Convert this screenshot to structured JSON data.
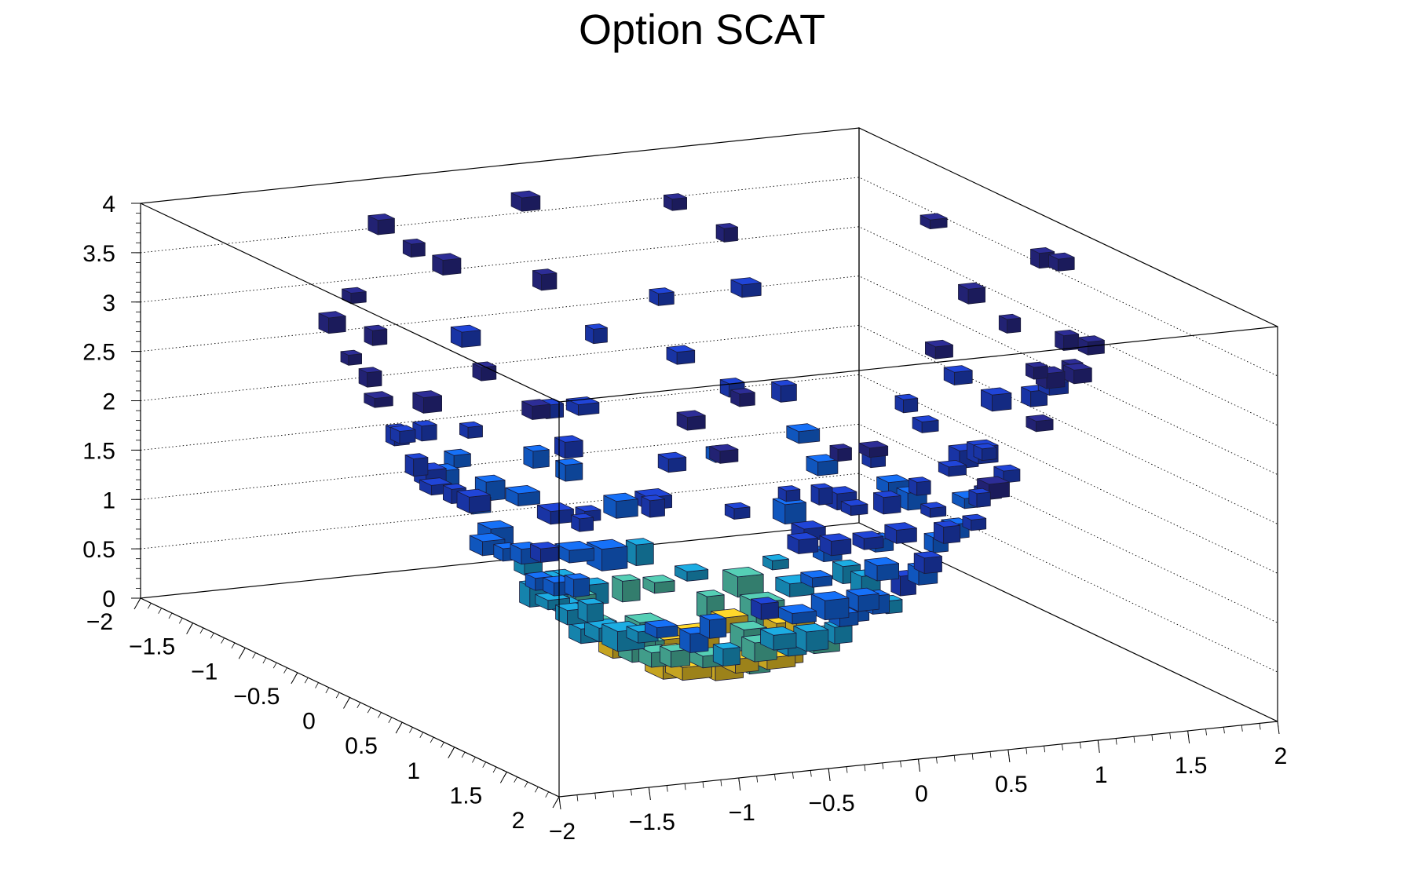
{
  "chart_data": {
    "type": "lego3d",
    "title": "Option SCAT",
    "xlabel": "",
    "ylabel": "",
    "zlabel": "",
    "xlim": [
      -2,
      2
    ],
    "ylim": [
      -2,
      2
    ],
    "zlim": [
      0,
      4
    ],
    "x_ticks": [
      "−2",
      "−1.5",
      "−1",
      "−0.5",
      "0",
      "0.5",
      "1",
      "1.5",
      "2"
    ],
    "y_ticks": [
      "−2",
      "−1.5",
      "−1",
      "−0.5",
      "0",
      "0.5",
      "1",
      "1.5",
      "2"
    ],
    "z_ticks": [
      "0",
      "0.5",
      "1",
      "1.5",
      "2",
      "2.5",
      "3",
      "3.5",
      "4"
    ],
    "grid": true,
    "surface_function": "z = x^2 + y^2 (paraboloid bowl)",
    "color_scale": [
      "#2a2a8c",
      "#1e40c8",
      "#1469e6",
      "#1aa0d2",
      "#4fc0a8",
      "#f0c828"
    ],
    "colors": {
      "background": "#ffffff",
      "axis": "#000000",
      "box_outline": "#1a1a1a"
    }
  }
}
